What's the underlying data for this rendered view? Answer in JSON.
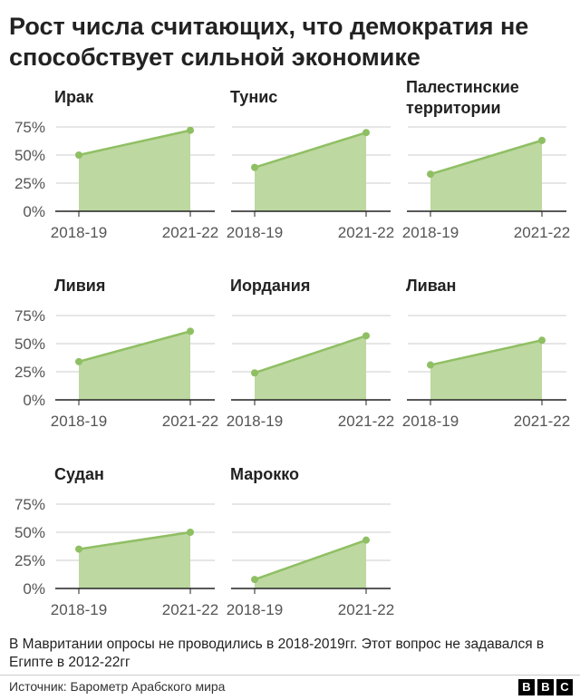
{
  "title": "Рост числа считающих, что демократия не способствует сильной экономике",
  "chart_data": {
    "type": "area",
    "x": [
      "2018-19",
      "2021-22"
    ],
    "ylim": [
      0,
      75
    ],
    "yticks": [
      "0%",
      "25%",
      "50%",
      "75%"
    ],
    "ytick_values": [
      0,
      25,
      50,
      75
    ],
    "grid": true,
    "panels": [
      {
        "name": "Ирак",
        "values": [
          50,
          72
        ]
      },
      {
        "name": "Тунис",
        "values": [
          39,
          70
        ]
      },
      {
        "name": "Палестинские территории",
        "values": [
          33,
          63
        ]
      },
      {
        "name": "Ливия",
        "values": [
          34,
          61
        ]
      },
      {
        "name": "Иордания",
        "values": [
          24,
          57
        ]
      },
      {
        "name": "Ливан",
        "values": [
          31,
          53
        ]
      },
      {
        "name": "Судан",
        "values": [
          35,
          50
        ]
      },
      {
        "name": "Марокко",
        "values": [
          8,
          43
        ]
      }
    ]
  },
  "colors": {
    "fill": "#bdd8a0",
    "line": "#8fbf63",
    "grid": "#cccccc",
    "axis": "#222222",
    "tick_text": "#555555"
  },
  "footnote": "В Мавритании опросы не проводились в 2018-2019гг. Этот вопрос не задавался в Египте в 2012-22гг",
  "source": "Источник: Барометр Арабского мира",
  "logo": [
    "B",
    "B",
    "C"
  ]
}
